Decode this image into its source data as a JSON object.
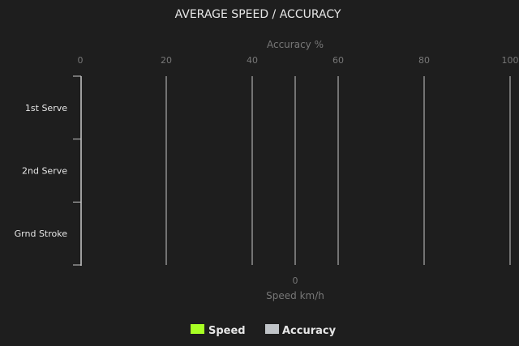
{
  "chart_data": {
    "type": "bar",
    "orientation": "horizontal",
    "title": "AVERAGE SPEED / ACCURACY",
    "categories": [
      "1st Serve",
      "2nd Serve",
      "Grnd Stroke"
    ],
    "series": [
      {
        "name": "Speed",
        "values": [
          null,
          null,
          null
        ],
        "color": "#a8ff24"
      },
      {
        "name": "Accuracy",
        "values": [
          null,
          null,
          null
        ],
        "color": "#c0c4c8"
      }
    ],
    "x_top": {
      "label": "Accuracy %",
      "range": [
        0,
        100
      ],
      "ticks": [
        0,
        20,
        40,
        60,
        80,
        100
      ]
    },
    "x_bottom": {
      "label": "Speed km/h",
      "ticks": [
        0
      ]
    },
    "grid": true,
    "legend": "bottom"
  },
  "colors": {
    "background": "#1e1e1e",
    "grid": "#c8c8c8",
    "muted_text": "#777777",
    "text": "#e6e6e6"
  }
}
